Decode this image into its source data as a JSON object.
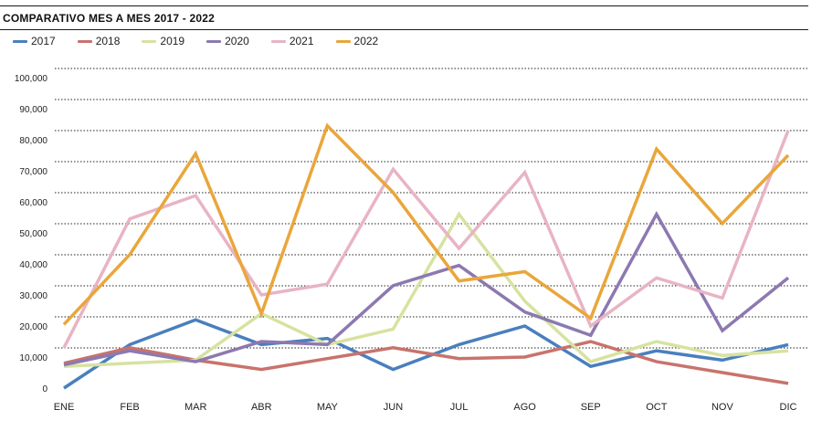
{
  "title": "COMPARATIVO MES A MES 2017 - 2022",
  "colors": {
    "2017": "#4a7fbd",
    "2018": "#c8736c",
    "2019": "#d7e2a0",
    "2020": "#8c79b0",
    "2021": "#e8b4c4",
    "2022": "#eaa63b"
  },
  "chart_data": {
    "type": "line",
    "title": "COMPARATIVO MES A MES 2017 - 2022",
    "xlabel": "",
    "ylabel": "",
    "ylim": [
      0,
      100000
    ],
    "grid": true,
    "legend_position": "top-left",
    "categories": [
      "ENE",
      "FEB",
      "MAR",
      "ABR",
      "MAY",
      "JUN",
      "JUL",
      "AGO",
      "SEP",
      "OCT",
      "NOV",
      "DIC"
    ],
    "y_ticks": [
      "0",
      "10,000",
      "20,000",
      "30,000",
      "40,000",
      "50,000",
      "60,000",
      "70,000",
      "80,000",
      "90,000",
      "100,000"
    ],
    "series": [
      {
        "name": "2017",
        "values": [
          0,
          14000,
          22000,
          14000,
          16000,
          6000,
          14000,
          20000,
          7000,
          12000,
          9000,
          14000
        ]
      },
      {
        "name": "2018",
        "values": [
          8000,
          13000,
          9000,
          6000,
          9500,
          13000,
          9500,
          10000,
          15000,
          8500,
          5000,
          1500
        ]
      },
      {
        "name": "2019",
        "values": [
          7000,
          8000,
          9000,
          24000,
          14000,
          19000,
          56000,
          28000,
          8500,
          15000,
          10500,
          12000
        ]
      },
      {
        "name": "2020",
        "values": [
          7500,
          12000,
          8500,
          15000,
          14000,
          33000,
          39500,
          24500,
          17000,
          56000,
          18500,
          35500
        ]
      },
      {
        "name": "2021",
        "values": [
          13000,
          54500,
          62000,
          30000,
          33500,
          70500,
          45000,
          69500,
          20000,
          35500,
          29000,
          83000
        ]
      },
      {
        "name": "2022",
        "values": [
          20500,
          43000,
          75500,
          24000,
          84500,
          63000,
          34500,
          37500,
          22500,
          77000,
          53000,
          75000
        ]
      }
    ]
  }
}
